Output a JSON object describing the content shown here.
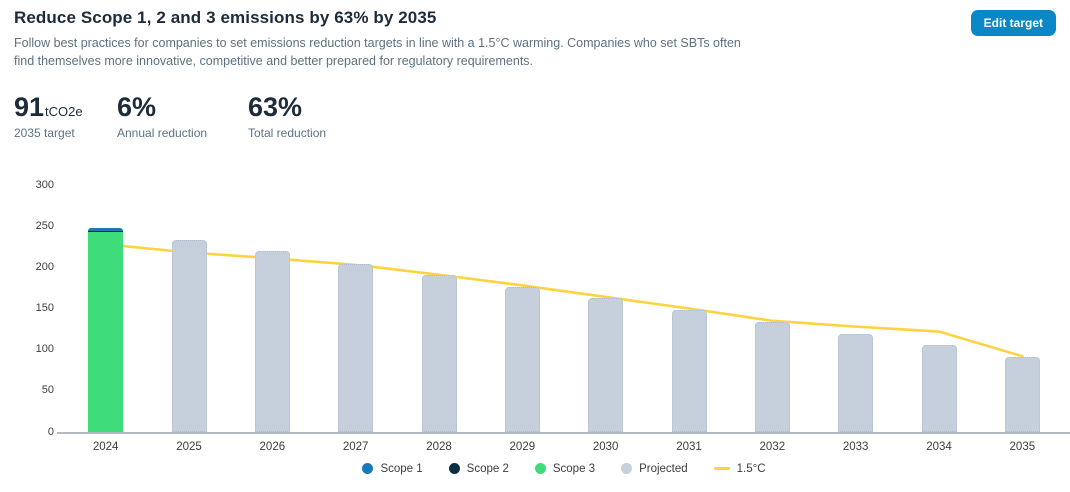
{
  "header": {
    "title": "Reduce Scope 1, 2 and 3 emissions by 63% by 2035",
    "subtitle": "Follow best practices for companies to set emissions reduction targets in line with a 1.5°C warming. Companies who set SBTs often find themselves more innovative, competitive and better prepared for regulatory requirements.",
    "edit_button_label": "Edit target"
  },
  "stats": [
    {
      "value": "91",
      "unit": "tCO2e",
      "label": "2035 target"
    },
    {
      "value": "6%",
      "unit": "",
      "label": "Annual reduction"
    },
    {
      "value": "63%",
      "unit": "",
      "label": "Total reduction"
    }
  ],
  "chart_data": {
    "type": "bar",
    "title": "",
    "xlabel": "",
    "ylabel": "",
    "categories": [
      "2024",
      "2025",
      "2026",
      "2027",
      "2028",
      "2029",
      "2030",
      "2031",
      "2032",
      "2033",
      "2034",
      "2035"
    ],
    "stacked_series": [
      {
        "name": "Scope 1",
        "color": "#1b79b6",
        "values": [
          3,
          0,
          0,
          0,
          0,
          0,
          0,
          0,
          0,
          0,
          0,
          0
        ]
      },
      {
        "name": "Scope 2",
        "color": "#0d2f44",
        "values": [
          1,
          0,
          0,
          0,
          0,
          0,
          0,
          0,
          0,
          0,
          0,
          0
        ]
      },
      {
        "name": "Scope 3",
        "color": "#3fdd7a",
        "values": [
          243,
          0,
          0,
          0,
          0,
          0,
          0,
          0,
          0,
          0,
          0,
          0
        ]
      },
      {
        "name": "Projected",
        "color": "#c6cfdc",
        "values": [
          0,
          233,
          219,
          204,
          190,
          176,
          162,
          148,
          133,
          119,
          105,
          91
        ]
      }
    ],
    "line_series": {
      "name": "1.5°C",
      "color": "#ffd23f",
      "values": [
        228,
        218,
        211,
        203,
        191,
        178,
        164,
        150,
        135,
        128,
        122,
        92
      ]
    },
    "ylim": [
      0,
      300
    ],
    "yticks": [
      0,
      50,
      100,
      150,
      200,
      250,
      300
    ],
    "grid": false,
    "legend_position": "bottom"
  }
}
